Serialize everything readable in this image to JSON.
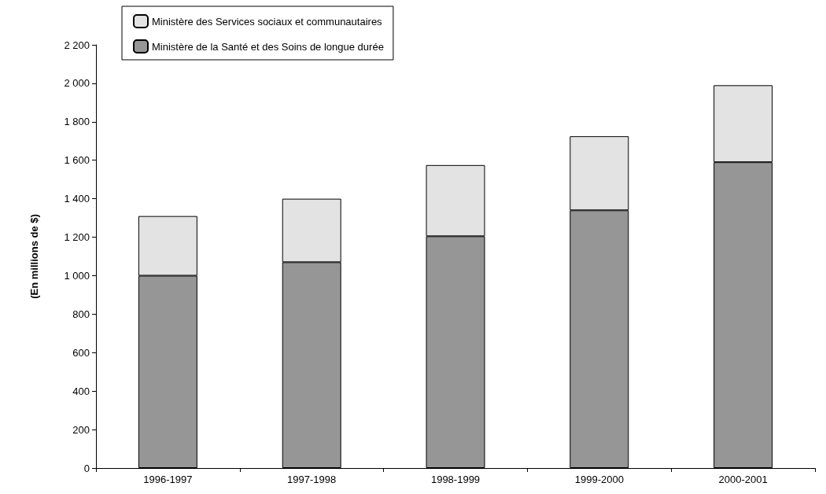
{
  "chart_data": {
    "type": "bar",
    "ylabel": "(En millions de $)",
    "categories": [
      "1996-1997",
      "1997-1998",
      "1998-1999",
      "1999-2000",
      "2000-2001"
    ],
    "series": [
      {
        "name": "Ministère de la Santé et des Soins de longue durée",
        "color": "#969696",
        "values": [
          1000,
          1070,
          1205,
          1340,
          1590
        ]
      },
      {
        "name": "Ministère des Services sociaux et communautaires",
        "color": "#e3e3e3",
        "values": [
          310,
          330,
          370,
          385,
          400
        ]
      }
    ],
    "stacked": true,
    "ylim": [
      0,
      2200
    ],
    "yticks": [
      0,
      {
        "value": 200,
        "label": "200"
      },
      {
        "value": 400,
        "label": "400"
      },
      {
        "value": 600,
        "label": "600"
      },
      {
        "value": 800,
        "label": "800"
      },
      {
        "value": 1000,
        "label": "1 000"
      },
      {
        "value": 1200,
        "label": "1 200"
      },
      {
        "value": 1400,
        "label": "1 400"
      },
      {
        "value": 1600,
        "label": "1 600"
      },
      {
        "value": 1800,
        "label": "1 800"
      },
      {
        "value": 2000,
        "label": "2 000"
      },
      {
        "value": 2200,
        "label": "2 200"
      }
    ],
    "grid": false,
    "legend": "top left"
  }
}
